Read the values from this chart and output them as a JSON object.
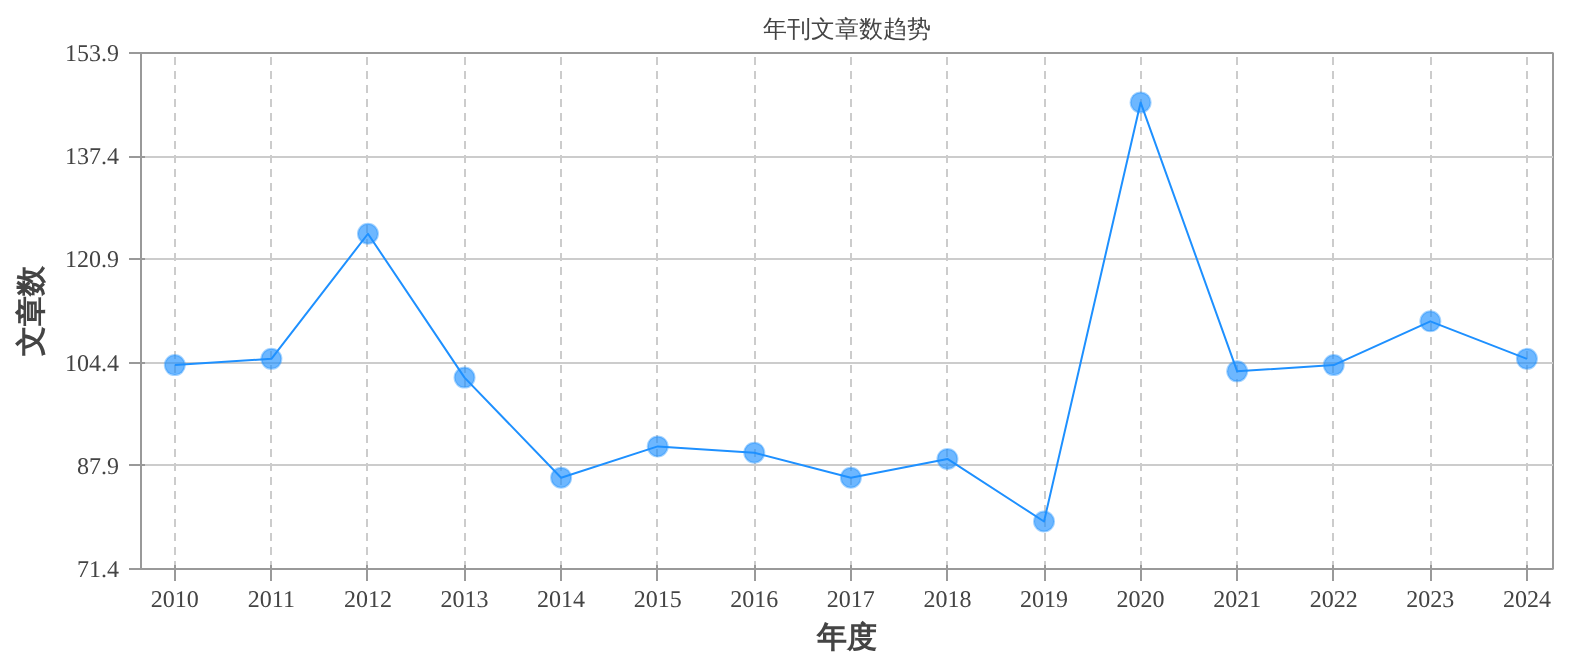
{
  "chart_data": {
    "type": "line",
    "title": "年刊文章数趋势",
    "xlabel": "年度",
    "ylabel": "文章数",
    "categories": [
      "2010",
      "2011",
      "2012",
      "2013",
      "2014",
      "2015",
      "2016",
      "2017",
      "2018",
      "2019",
      "2020",
      "2021",
      "2022",
      "2023",
      "2024"
    ],
    "series": [
      {
        "color": "#1e90ff",
        "values": [
          104,
          105,
          125,
          102,
          86,
          91,
          90,
          86,
          89,
          79,
          146,
          103,
          104,
          111,
          105
        ]
      }
    ],
    "ylim": [
      71.4,
      153.9
    ],
    "yticks": [
      71.4,
      87.9,
      104.4,
      120.9,
      137.4,
      153.9
    ],
    "grid": true,
    "marker": "circle",
    "line_style": "solid"
  }
}
